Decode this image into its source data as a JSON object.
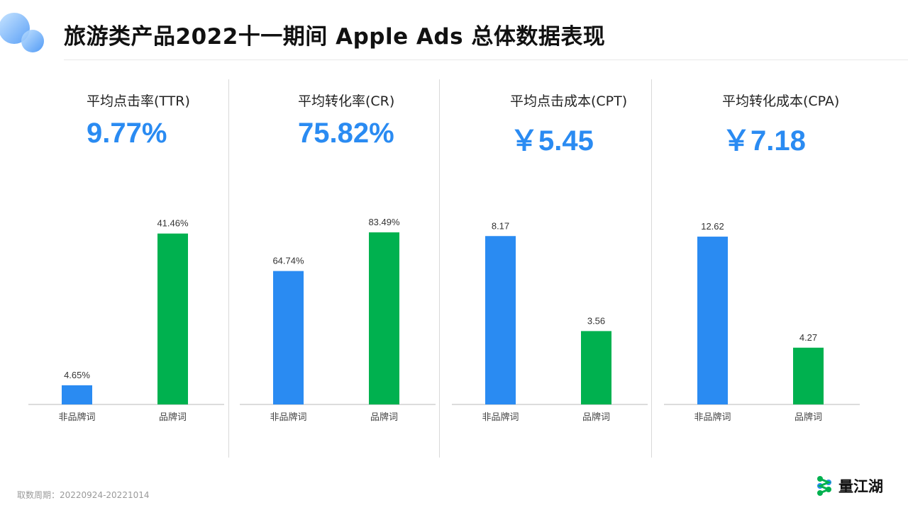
{
  "page": {
    "title": "旅游类产品2022十一期间 Apple Ads 总体数据表现",
    "footer_note": "取数周期：20220924-20221014",
    "brand_name": "量江湖"
  },
  "colors": {
    "blue": "#2a8bf2",
    "green": "#00b14f",
    "accent": "#2a8bf2"
  },
  "panels": [
    {
      "title": "平均点击率(TTR)",
      "value": "9.77%"
    },
    {
      "title": "平均转化率(CR)",
      "value": "75.82%"
    },
    {
      "title": "平均点击成本(CPT)",
      "value": "￥5.45"
    },
    {
      "title": "平均转化成本(CPA)",
      "value": "￥7.18"
    }
  ],
  "chart_data": [
    {
      "type": "bar",
      "categories": [
        "非品牌词",
        "品牌词"
      ],
      "values": [
        4.65,
        41.46
      ],
      "labels": [
        "4.65%",
        "41.46%"
      ],
      "ylim": [
        0,
        50
      ]
    },
    {
      "type": "bar",
      "categories": [
        "非品牌词",
        "品牌词"
      ],
      "values": [
        64.74,
        83.49
      ],
      "labels": [
        "64.74%",
        "83.49%"
      ],
      "ylim": [
        0,
        100
      ]
    },
    {
      "type": "bar",
      "categories": [
        "非品牌词",
        "品牌词"
      ],
      "values": [
        8.17,
        3.56
      ],
      "labels": [
        "8.17",
        "3.56"
      ],
      "ylim": [
        0,
        10
      ]
    },
    {
      "type": "bar",
      "categories": [
        "非品牌词",
        "品牌词"
      ],
      "values": [
        12.62,
        4.27
      ],
      "labels": [
        "12.62",
        "4.27"
      ],
      "ylim": [
        0,
        15.5
      ]
    }
  ]
}
